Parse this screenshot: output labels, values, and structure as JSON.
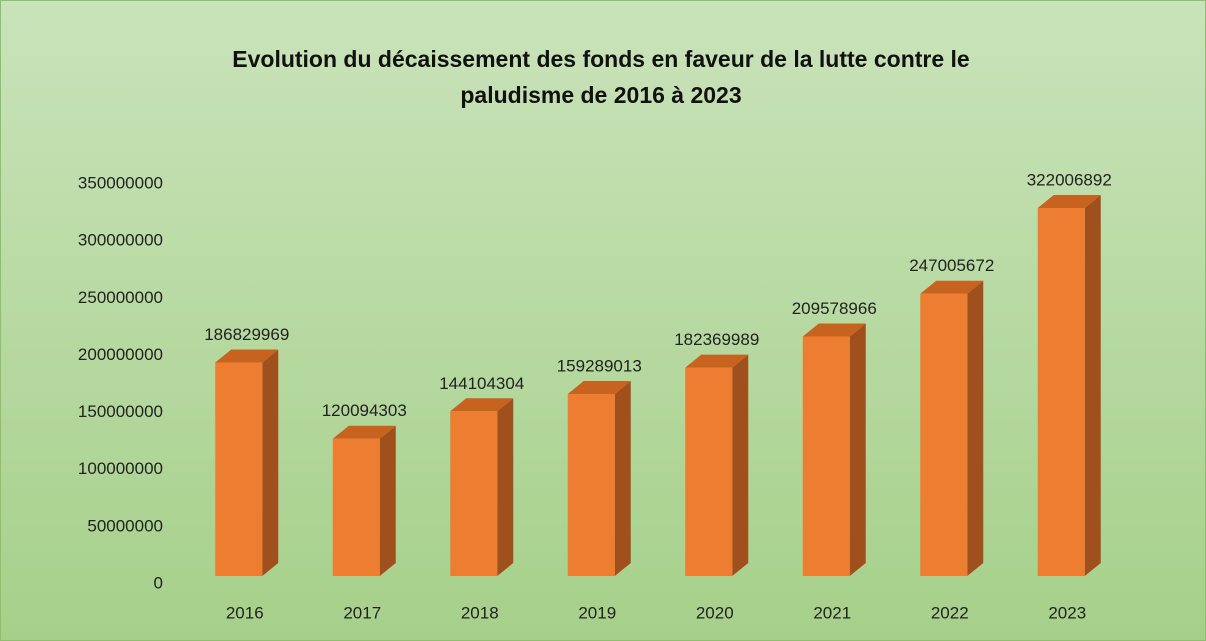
{
  "chart_data": {
    "type": "bar3d",
    "title": "Evolution du décaissement des fonds en faveur de la lutte contre le paludisme de 2016 à 2023",
    "categories": [
      "2016",
      "2017",
      "2018",
      "2019",
      "2020",
      "2021",
      "2022",
      "2023"
    ],
    "values": [
      186829969,
      120094303,
      144104304,
      159289013,
      182369989,
      209578966,
      247005672,
      322006892
    ],
    "color": "#ed7d31",
    "ylim": [
      0,
      350000000
    ],
    "yticks": [
      0,
      50000000,
      100000000,
      150000000,
      200000000,
      250000000,
      300000000,
      350000000
    ],
    "grid": false
  }
}
